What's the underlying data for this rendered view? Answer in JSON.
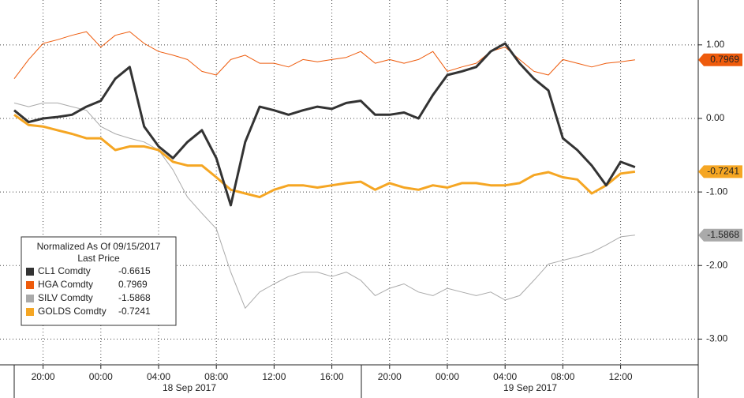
{
  "chart_data": {
    "type": "line",
    "legend_title": "Normalized As Of 09/15/2017",
    "legend_subtitle": "Last Price",
    "categories": [
      null,
      null,
      "20:00",
      null,
      null,
      null,
      "00:00",
      null,
      null,
      null,
      "04:00",
      null,
      null,
      null,
      "08:00",
      null,
      null,
      null,
      "12:00",
      null,
      null,
      null,
      "16:00",
      null,
      null,
      null,
      "20:00",
      null,
      null,
      null,
      "00:00",
      null,
      null,
      null,
      "04:00",
      null,
      null,
      null,
      "08:00",
      null,
      null,
      null,
      "12:00",
      null
    ],
    "x_groups": [
      "18 Sep 2017",
      "19 Sep 2017"
    ],
    "ylim": [
      -3.35,
      1.61
    ],
    "yticks": [
      {
        "value": 1,
        "label": "1.00"
      },
      {
        "value": 0,
        "label": "0.00"
      },
      {
        "value": -1,
        "label": "-1.00"
      },
      {
        "value": -2,
        "label": "-2.00"
      },
      {
        "value": -3,
        "label": "-3.00"
      }
    ],
    "grid": true,
    "series": [
      {
        "name": "CL1 Comdty",
        "color": "#333333",
        "line_width": 3,
        "tag": false,
        "values": [
          0.11,
          -0.05,
          0,
          0.02,
          0.05,
          0.16,
          0.24,
          0.54,
          0.7,
          -0.11,
          -0.38,
          -0.54,
          -0.32,
          -0.16,
          -0.54,
          -1.18,
          -0.32,
          0.16,
          0.11,
          0.05,
          0.11,
          0.16,
          0.13,
          0.21,
          0.24,
          0.05,
          0.05,
          0.08,
          0,
          0.32,
          0.59,
          0.64,
          0.7,
          0.91,
          1.02,
          0.75,
          0.54,
          0.38,
          -0.27,
          -0.43,
          -0.64,
          -0.91,
          -0.59,
          -0.6615
        ]
      },
      {
        "name": "HGA Comdty",
        "color": "#ee5b0c",
        "line_width": 1,
        "tag": true,
        "values": [
          0.54,
          0.8,
          1.02,
          1.07,
          1.13,
          1.18,
          0.97,
          1.13,
          1.18,
          1.02,
          0.91,
          0.86,
          0.8,
          0.64,
          0.59,
          0.8,
          0.86,
          0.75,
          0.75,
          0.7,
          0.8,
          0.77,
          0.8,
          0.83,
          0.91,
          0.75,
          0.8,
          0.75,
          0.8,
          0.91,
          0.64,
          0.7,
          0.75,
          0.91,
          0.97,
          0.8,
          0.64,
          0.59,
          0.8,
          0.75,
          0.7,
          0.75,
          0.77,
          0.7969
        ]
      },
      {
        "name": "SILV Comdty",
        "color": "#aaaaaa",
        "line_width": 1,
        "tag": true,
        "values": [
          0.21,
          0.16,
          0.21,
          0.21,
          0.16,
          0.11,
          -0.11,
          -0.21,
          -0.27,
          -0.32,
          -0.43,
          -0.7,
          -1.07,
          -1.29,
          -1.5,
          -2.09,
          -2.58,
          -2.36,
          -2.25,
          -2.15,
          -2.09,
          -2.09,
          -2.15,
          -2.09,
          -2.2,
          -2.41,
          -2.31,
          -2.25,
          -2.36,
          -2.41,
          -2.31,
          -2.36,
          -2.41,
          -2.36,
          -2.47,
          -2.41,
          -2.2,
          -1.98,
          -1.93,
          -1.88,
          -1.82,
          -1.72,
          -1.61,
          -1.5868
        ]
      },
      {
        "name": "GOLDS Comdty",
        "color": "#f5a623",
        "line_width": 3,
        "tag": true,
        "values": [
          0.05,
          -0.09,
          -0.11,
          -0.16,
          -0.21,
          -0.27,
          -0.27,
          -0.43,
          -0.38,
          -0.38,
          -0.43,
          -0.59,
          -0.64,
          -0.64,
          -0.8,
          -0.97,
          -1.02,
          -1.07,
          -0.97,
          -0.91,
          -0.91,
          -0.94,
          -0.91,
          -0.88,
          -0.86,
          -0.97,
          -0.88,
          -0.94,
          -0.97,
          -0.91,
          -0.94,
          -0.88,
          -0.88,
          -0.91,
          -0.91,
          -0.88,
          -0.77,
          -0.73,
          -0.8,
          -0.83,
          -1.02,
          -0.91,
          -0.75,
          -0.7241
        ]
      }
    ]
  }
}
